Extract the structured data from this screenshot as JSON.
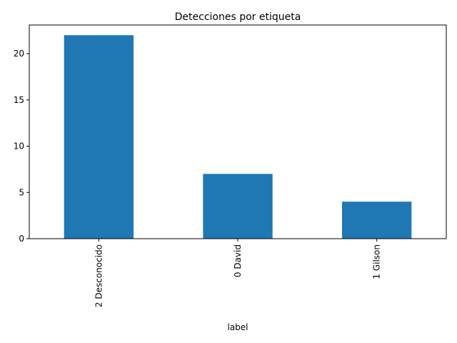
{
  "chart_data": {
    "type": "bar",
    "title": "Detecciones por etiqueta",
    "xlabel": "label",
    "ylabel": "",
    "categories": [
      "2 Desconocido",
      "0 David",
      "1 Gilson"
    ],
    "values": [
      22,
      7,
      4
    ],
    "ylim": [
      0,
      23.1
    ],
    "yticks": [
      0,
      5,
      10,
      15,
      20
    ],
    "grid": false,
    "bar_color": "#1f77b4"
  }
}
